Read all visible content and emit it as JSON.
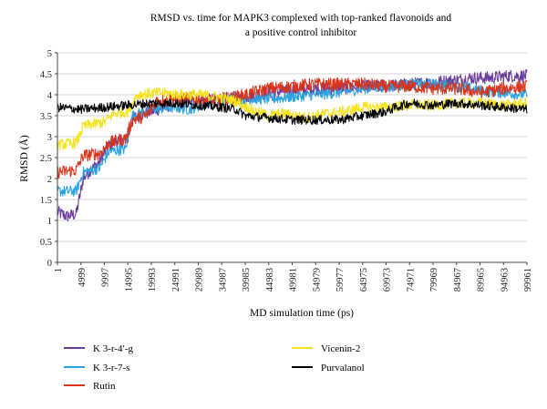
{
  "chart_data": {
    "type": "line",
    "title": [
      "RMSD vs. time for MAPK3 complexed with top-ranked flavonoids and",
      "a positive control inhibitor"
    ],
    "xlabel": "MD simulation time (ps)",
    "ylabel": "RMSD (Å)",
    "xlim": [
      1,
      99961
    ],
    "ylim": [
      0,
      5
    ],
    "x_ticks": [
      "1",
      "4999",
      "9997",
      "14995",
      "19993",
      "24991",
      "29989",
      "34987",
      "39985",
      "44983",
      "49981",
      "54979",
      "59977",
      "64975",
      "69973",
      "74971",
      "79969",
      "84967",
      "89965",
      "94963",
      "99961"
    ],
    "y_ticks": [
      "0",
      "0.5",
      "1",
      "1.5",
      "2",
      "2.5",
      "3",
      "3.5",
      "4",
      "4.5",
      "5"
    ],
    "grid": "horizontal",
    "legend_position": "bottom",
    "series": [
      {
        "name": "K 3-r-4′-g",
        "color": "#6a3d9a",
        "noise": 0.07,
        "points": [
          [
            1,
            1.2
          ],
          [
            2000,
            1.1
          ],
          [
            4000,
            1.15
          ],
          [
            5500,
            2.0
          ],
          [
            7000,
            2.2
          ],
          [
            9000,
            2.4
          ],
          [
            11000,
            2.8
          ],
          [
            13000,
            2.9
          ],
          [
            15000,
            2.95
          ],
          [
            16000,
            3.45
          ],
          [
            20000,
            3.6
          ],
          [
            25000,
            3.8
          ],
          [
            30000,
            3.85
          ],
          [
            35000,
            3.9
          ],
          [
            40000,
            3.95
          ],
          [
            45000,
            4.05
          ],
          [
            50000,
            4.1
          ],
          [
            55000,
            4.15
          ],
          [
            60000,
            4.15
          ],
          [
            65000,
            4.2
          ],
          [
            70000,
            4.2
          ],
          [
            75000,
            4.25
          ],
          [
            80000,
            4.3
          ],
          [
            85000,
            4.35
          ],
          [
            88000,
            4.4
          ],
          [
            92000,
            4.4
          ],
          [
            96000,
            4.45
          ],
          [
            99961,
            4.45
          ]
        ]
      },
      {
        "name": "K 3-r-7-s",
        "color": "#29a3e0",
        "noise": 0.06,
        "points": [
          [
            1,
            1.7
          ],
          [
            4000,
            1.7
          ],
          [
            5500,
            2.15
          ],
          [
            9000,
            2.25
          ],
          [
            11000,
            2.65
          ],
          [
            14500,
            2.7
          ],
          [
            16000,
            3.5
          ],
          [
            20000,
            3.65
          ],
          [
            25000,
            3.7
          ],
          [
            28000,
            3.65
          ],
          [
            32000,
            3.8
          ],
          [
            36000,
            3.9
          ],
          [
            40000,
            3.9
          ],
          [
            45000,
            3.9
          ],
          [
            50000,
            3.95
          ],
          [
            55000,
            4.0
          ],
          [
            60000,
            4.05
          ],
          [
            65000,
            4.15
          ],
          [
            70000,
            4.2
          ],
          [
            75000,
            4.25
          ],
          [
            80000,
            4.25
          ],
          [
            85000,
            4.2
          ],
          [
            90000,
            4.1
          ],
          [
            95000,
            4.05
          ],
          [
            99961,
            4.0
          ]
        ]
      },
      {
        "name": "Rutin",
        "color": "#d9331a",
        "noise": 0.07,
        "points": [
          [
            1,
            2.15
          ],
          [
            4000,
            2.2
          ],
          [
            5500,
            2.55
          ],
          [
            9000,
            2.6
          ],
          [
            11000,
            2.85
          ],
          [
            14500,
            2.95
          ],
          [
            16000,
            3.4
          ],
          [
            19000,
            3.5
          ],
          [
            21000,
            3.85
          ],
          [
            25000,
            3.9
          ],
          [
            30000,
            3.9
          ],
          [
            33000,
            3.85
          ],
          [
            36000,
            3.9
          ],
          [
            40000,
            4.0
          ],
          [
            45000,
            4.15
          ],
          [
            50000,
            4.2
          ],
          [
            55000,
            4.25
          ],
          [
            60000,
            4.25
          ],
          [
            65000,
            4.25
          ],
          [
            70000,
            4.2
          ],
          [
            75000,
            4.2
          ],
          [
            80000,
            4.15
          ],
          [
            85000,
            4.15
          ],
          [
            90000,
            4.05
          ],
          [
            95000,
            4.15
          ],
          [
            99961,
            4.2
          ]
        ]
      },
      {
        "name": "Vicenin-2",
        "color": "#f5e21a",
        "noise": 0.06,
        "points": [
          [
            1,
            2.8
          ],
          [
            4000,
            2.85
          ],
          [
            5500,
            3.25
          ],
          [
            10000,
            3.35
          ],
          [
            12000,
            3.55
          ],
          [
            15000,
            3.6
          ],
          [
            17000,
            4.0
          ],
          [
            22000,
            4.05
          ],
          [
            26000,
            4.0
          ],
          [
            30000,
            4.0
          ],
          [
            34000,
            3.95
          ],
          [
            38000,
            3.85
          ],
          [
            42000,
            3.6
          ],
          [
            45000,
            3.5
          ],
          [
            48000,
            3.55
          ],
          [
            53000,
            3.45
          ],
          [
            57000,
            3.55
          ],
          [
            61000,
            3.6
          ],
          [
            65000,
            3.7
          ],
          [
            70000,
            3.7
          ],
          [
            75000,
            3.75
          ],
          [
            80000,
            3.75
          ],
          [
            85000,
            3.8
          ],
          [
            90000,
            3.8
          ],
          [
            95000,
            3.75
          ],
          [
            99961,
            3.8
          ]
        ]
      },
      {
        "name": "Purvalanol",
        "color": "#000000",
        "noise": 0.05,
        "points": [
          [
            1,
            3.7
          ],
          [
            5000,
            3.65
          ],
          [
            10000,
            3.7
          ],
          [
            15000,
            3.75
          ],
          [
            20000,
            3.8
          ],
          [
            25000,
            3.8
          ],
          [
            30000,
            3.75
          ],
          [
            35000,
            3.7
          ],
          [
            38000,
            3.65
          ],
          [
            40000,
            3.5
          ],
          [
            45000,
            3.45
          ],
          [
            50000,
            3.4
          ],
          [
            55000,
            3.4
          ],
          [
            60000,
            3.4
          ],
          [
            65000,
            3.5
          ],
          [
            70000,
            3.6
          ],
          [
            72000,
            3.7
          ],
          [
            75000,
            3.8
          ],
          [
            80000,
            3.75
          ],
          [
            85000,
            3.8
          ],
          [
            90000,
            3.75
          ],
          [
            95000,
            3.7
          ],
          [
            99961,
            3.65
          ]
        ]
      }
    ]
  }
}
